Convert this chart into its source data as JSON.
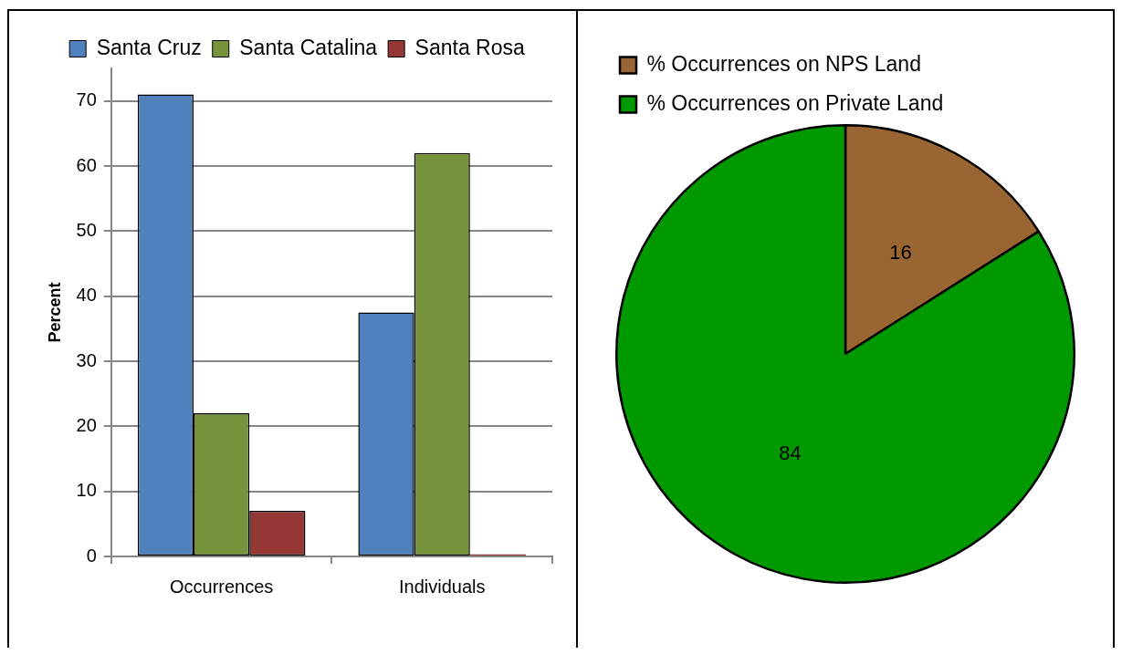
{
  "chart_data": [
    {
      "type": "bar",
      "ylabel": "Percent",
      "categories": [
        "Occurrences",
        "Individuals"
      ],
      "series": [
        {
          "name": "Santa Cruz",
          "color": "#4f81bd",
          "values": [
            71,
            37.5
          ]
        },
        {
          "name": "Santa Catalina",
          "color": "#77933c",
          "values": [
            22,
            62
          ]
        },
        {
          "name": "Santa Rosa",
          "color": "#953735",
          "values": [
            7,
            0.3
          ]
        }
      ],
      "ylim": [
        0,
        75
      ],
      "yticks": [
        0,
        10,
        20,
        30,
        40,
        50,
        60,
        70
      ],
      "grid": "y",
      "legend": "top"
    },
    {
      "type": "pie",
      "categories": [
        "% Occurrences on NPS Land",
        "% Occurrences on Private Land"
      ],
      "values": [
        16,
        84
      ],
      "colors": [
        "#996633",
        "#009900"
      ],
      "data_labels": true,
      "legend": "top"
    }
  ]
}
